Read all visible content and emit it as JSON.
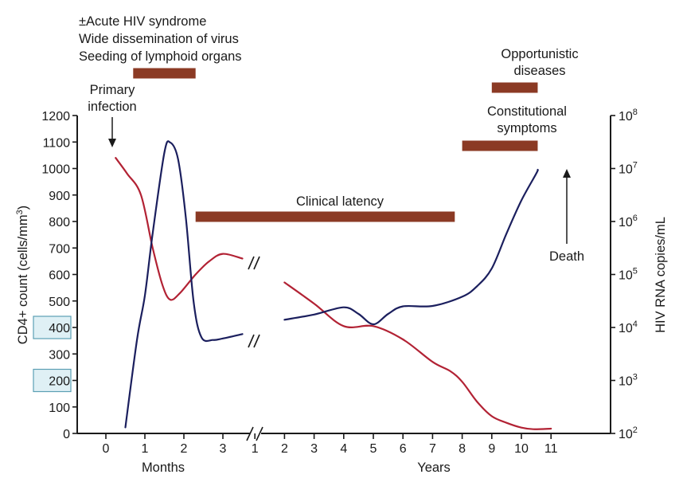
{
  "colors": {
    "cd4": "#b22234",
    "rna": "#1b1f5e",
    "bar": "#8b3a24",
    "highlight_fill": "#dff0f5",
    "highlight_stroke": "#5b9fb3"
  },
  "chart_data": {
    "type": "line",
    "title": "",
    "y_left": {
      "label_main": "CD4+ count (cells/mm",
      "label_sup": "3",
      "label_end": ")",
      "range": [
        0,
        1200
      ],
      "ticks": [
        "0",
        "100",
        "200",
        "300",
        "400",
        "500",
        "600",
        "700",
        "800",
        "900",
        "1000",
        "1100",
        "1200"
      ],
      "highlighted_ticks": [
        "200",
        "400"
      ]
    },
    "y_right": {
      "label": "HIV RNA copies/mL",
      "scale": "log",
      "range": [
        100,
        100000000
      ],
      "ticks": [
        {
          "base": "10",
          "exp": "2"
        },
        {
          "base": "10",
          "exp": "3"
        },
        {
          "base": "10",
          "exp": "4"
        },
        {
          "base": "10",
          "exp": "5"
        },
        {
          "base": "10",
          "exp": "6"
        },
        {
          "base": "10",
          "exp": "7"
        },
        {
          "base": "10",
          "exp": "8"
        }
      ]
    },
    "x_months": {
      "label": "Months",
      "ticks": [
        "0",
        "1",
        "2",
        "3"
      ]
    },
    "x_years": {
      "label": "Years",
      "ticks": [
        "1",
        "2",
        "3",
        "4",
        "5",
        "6",
        "7",
        "8",
        "9",
        "10",
        "11"
      ]
    },
    "series": [
      {
        "key": "cd4",
        "axis": "left",
        "points": [
          {
            "period": "months",
            "t": 0.25,
            "v": 1040
          },
          {
            "period": "months",
            "t": 0.55,
            "v": 980
          },
          {
            "period": "months",
            "t": 0.9,
            "v": 900
          },
          {
            "period": "months",
            "t": 1.2,
            "v": 700
          },
          {
            "period": "months",
            "t": 1.45,
            "v": 560
          },
          {
            "period": "months",
            "t": 1.65,
            "v": 505
          },
          {
            "period": "months",
            "t": 1.9,
            "v": 530
          },
          {
            "period": "months",
            "t": 2.3,
            "v": 600
          },
          {
            "period": "months",
            "t": 2.65,
            "v": 650
          },
          {
            "period": "months",
            "t": 3.0,
            "v": 678
          },
          {
            "period": "months",
            "t": 3.5,
            "v": 660
          },
          {
            "period": "months",
            "t": 4.0,
            "v": 640
          },
          {
            "period": "years",
            "t": 0.0,
            "v": 635
          },
          {
            "period": "years",
            "t": 0.5,
            "v": 615
          },
          {
            "period": "years",
            "t": 1.0,
            "v": 598
          },
          {
            "period": "years",
            "t": 2.0,
            "v": 570
          },
          {
            "period": "years",
            "t": 3.0,
            "v": 490
          },
          {
            "period": "years",
            "t": 4.0,
            "v": 405
          },
          {
            "period": "years",
            "t": 5.0,
            "v": 405
          },
          {
            "period": "years",
            "t": 6.0,
            "v": 355
          },
          {
            "period": "years",
            "t": 7.0,
            "v": 270
          },
          {
            "period": "years",
            "t": 7.6,
            "v": 235
          },
          {
            "period": "years",
            "t": 8.0,
            "v": 195
          },
          {
            "period": "years",
            "t": 8.5,
            "v": 120
          },
          {
            "period": "years",
            "t": 9.0,
            "v": 65
          },
          {
            "period": "years",
            "t": 9.5,
            "v": 40
          },
          {
            "period": "years",
            "t": 10.0,
            "v": 22
          },
          {
            "period": "years",
            "t": 10.4,
            "v": 16
          },
          {
            "period": "years",
            "t": 11.0,
            "v": 18
          }
        ]
      },
      {
        "key": "rna",
        "axis": "right",
        "points": [
          {
            "period": "months",
            "t": 0.5,
            "v": 130
          },
          {
            "period": "months",
            "t": 0.8,
            "v": 6000
          },
          {
            "period": "months",
            "t": 1.0,
            "v": 40000
          },
          {
            "period": "months",
            "t": 1.2,
            "v": 600000
          },
          {
            "period": "months",
            "t": 1.5,
            "v": 20000000
          },
          {
            "period": "months",
            "t": 1.65,
            "v": 31000000
          },
          {
            "period": "months",
            "t": 1.85,
            "v": 15000000
          },
          {
            "period": "months",
            "t": 2.05,
            "v": 1200000
          },
          {
            "period": "months",
            "t": 2.25,
            "v": 30000
          },
          {
            "period": "months",
            "t": 2.45,
            "v": 6500
          },
          {
            "period": "months",
            "t": 2.75,
            "v": 5800
          },
          {
            "period": "months",
            "t": 3.0,
            "v": 6200
          },
          {
            "period": "months",
            "t": 3.5,
            "v": 7500
          },
          {
            "period": "months",
            "t": 4.0,
            "v": 9000
          },
          {
            "period": "years",
            "t": 0.0,
            "v": 9500
          },
          {
            "period": "years",
            "t": 0.5,
            "v": 10000
          },
          {
            "period": "years",
            "t": 1.0,
            "v": 11000
          },
          {
            "period": "years",
            "t": 2.0,
            "v": 14000
          },
          {
            "period": "years",
            "t": 3.0,
            "v": 17500
          },
          {
            "period": "years",
            "t": 4.0,
            "v": 24000
          },
          {
            "period": "years",
            "t": 4.5,
            "v": 18000
          },
          {
            "period": "years",
            "t": 5.0,
            "v": 11500
          },
          {
            "period": "years",
            "t": 5.5,
            "v": 18000
          },
          {
            "period": "years",
            "t": 6.0,
            "v": 25000
          },
          {
            "period": "years",
            "t": 7.0,
            "v": 25500
          },
          {
            "period": "years",
            "t": 8.0,
            "v": 38000
          },
          {
            "period": "years",
            "t": 8.5,
            "v": 60000
          },
          {
            "period": "years",
            "t": 9.0,
            "v": 130000
          },
          {
            "period": "years",
            "t": 9.5,
            "v": 600000
          },
          {
            "period": "years",
            "t": 10.0,
            "v": 2500000
          },
          {
            "period": "years",
            "t": 10.5,
            "v": 8000000
          },
          {
            "period": "years",
            "t": 10.55,
            "v": 9500000
          }
        ]
      }
    ],
    "bars": [
      {
        "name": "acute",
        "from": {
          "period": "months",
          "t": 0.7
        },
        "to": {
          "period": "months",
          "t": 2.3
        }
      },
      {
        "name": "latency",
        "from": {
          "period": "months",
          "t": 2.3
        },
        "to": {
          "period": "years",
          "t": 7.75
        }
      },
      {
        "name": "constitutional",
        "from": {
          "period": "years",
          "t": 8.0
        },
        "to": {
          "period": "years",
          "t": 10.55
        }
      },
      {
        "name": "opportunistic",
        "from": {
          "period": "years",
          "t": 9.0
        },
        "to": {
          "period": "years",
          "t": 10.55
        }
      }
    ],
    "annotations": {
      "acute": [
        "±Acute HIV syndrome",
        "Wide dissemination of virus",
        "Seeding of lymphoid organs"
      ],
      "primary": [
        "Primary",
        "infection"
      ],
      "latency": [
        "Clinical latency"
      ],
      "constitutional": [
        "Constitutional",
        "symptoms"
      ],
      "opportunistic": [
        "Opportunistic",
        "diseases"
      ],
      "death": [
        "Death"
      ]
    }
  }
}
